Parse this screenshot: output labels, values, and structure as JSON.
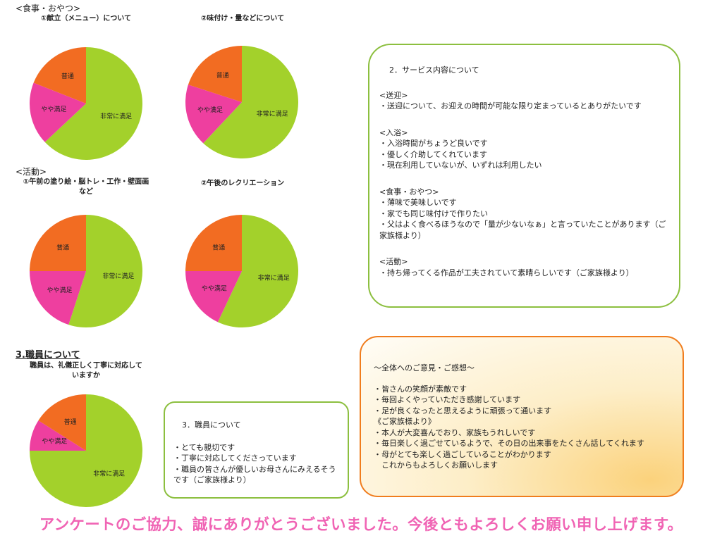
{
  "left": {
    "meal_heading": "<食事・おやつ>",
    "activity_heading": "<活動>",
    "staff_heading": "3.職員について",
    "slice_labels": [
      "非常に満足",
      "やや満足",
      "普通"
    ],
    "slice_colors": [
      "#a3d12b",
      "#ee3f9f",
      "#f26c22"
    ],
    "pies": [
      {
        "title": "①献立（メニュー）について",
        "values": [
          63,
          18,
          19
        ]
      },
      {
        "title": "②味付け・量などについて",
        "values": [
          62,
          18,
          20
        ]
      },
      {
        "title": "①午前の塗り絵・脳トレ・工作・壁面画など",
        "values": [
          55,
          20,
          25
        ]
      },
      {
        "title": "②午後のレクリエーション",
        "values": [
          57,
          18,
          25
        ]
      },
      {
        "title": "職員は、礼儀正しく丁寧に対応していますか",
        "values": [
          75,
          9,
          16
        ]
      }
    ]
  },
  "service_box": {
    "title": "2．サービス内容について",
    "groups": [
      {
        "heading": "<送迎>",
        "items": [
          "・送迎について、お迎えの時間が可能な限り定まっているとありがたいです"
        ]
      },
      {
        "heading": "<入浴>",
        "items": [
          "・入浴時間がちょうど良いです",
          "・優しく介助してくれています",
          "・現在利用していないが、いずれは利用したい"
        ]
      },
      {
        "heading": "<食事・おやつ>",
        "items": [
          "・薄味で美味しいです",
          "・家でも同じ味付けで作りたい",
          "・父はよく食べるほうなので「量が少ないなぁ」と言っていたことがあります（ご家族様より）"
        ]
      },
      {
        "heading": "<活動>",
        "items": [
          "・持ち帰ってくる作品が工夫されていて素晴らしいです（ご家族様より）"
        ]
      }
    ]
  },
  "staff_box": {
    "title": "3．職員について",
    "items": [
      "・とても親切です",
      "・丁寧に対応してくださっています",
      "・職員の皆さんが優しいお母さんにみえるそうです（ご家族様より）"
    ]
  },
  "overall_box": {
    "title": "～全体へのご意見・ご感想～",
    "items": [
      "・皆さんの笑顔が素敵です",
      "・毎回よくやっていただき感謝しています",
      "・足が良くなったと思えるように頑張って通います",
      "《ご家族様より》",
      "・本人が大変喜んでおり、家族もうれしいです",
      "・毎日楽しく過ごせているようで、その日の出来事をたくさん話してくれます",
      "・母がとても楽しく過ごしていることがわかります",
      "　これからもよろしくお願いします"
    ]
  },
  "footer": "アンケートのご協力、誠にありがとうございました。今後ともよろしくお願い申し上げます。"
}
